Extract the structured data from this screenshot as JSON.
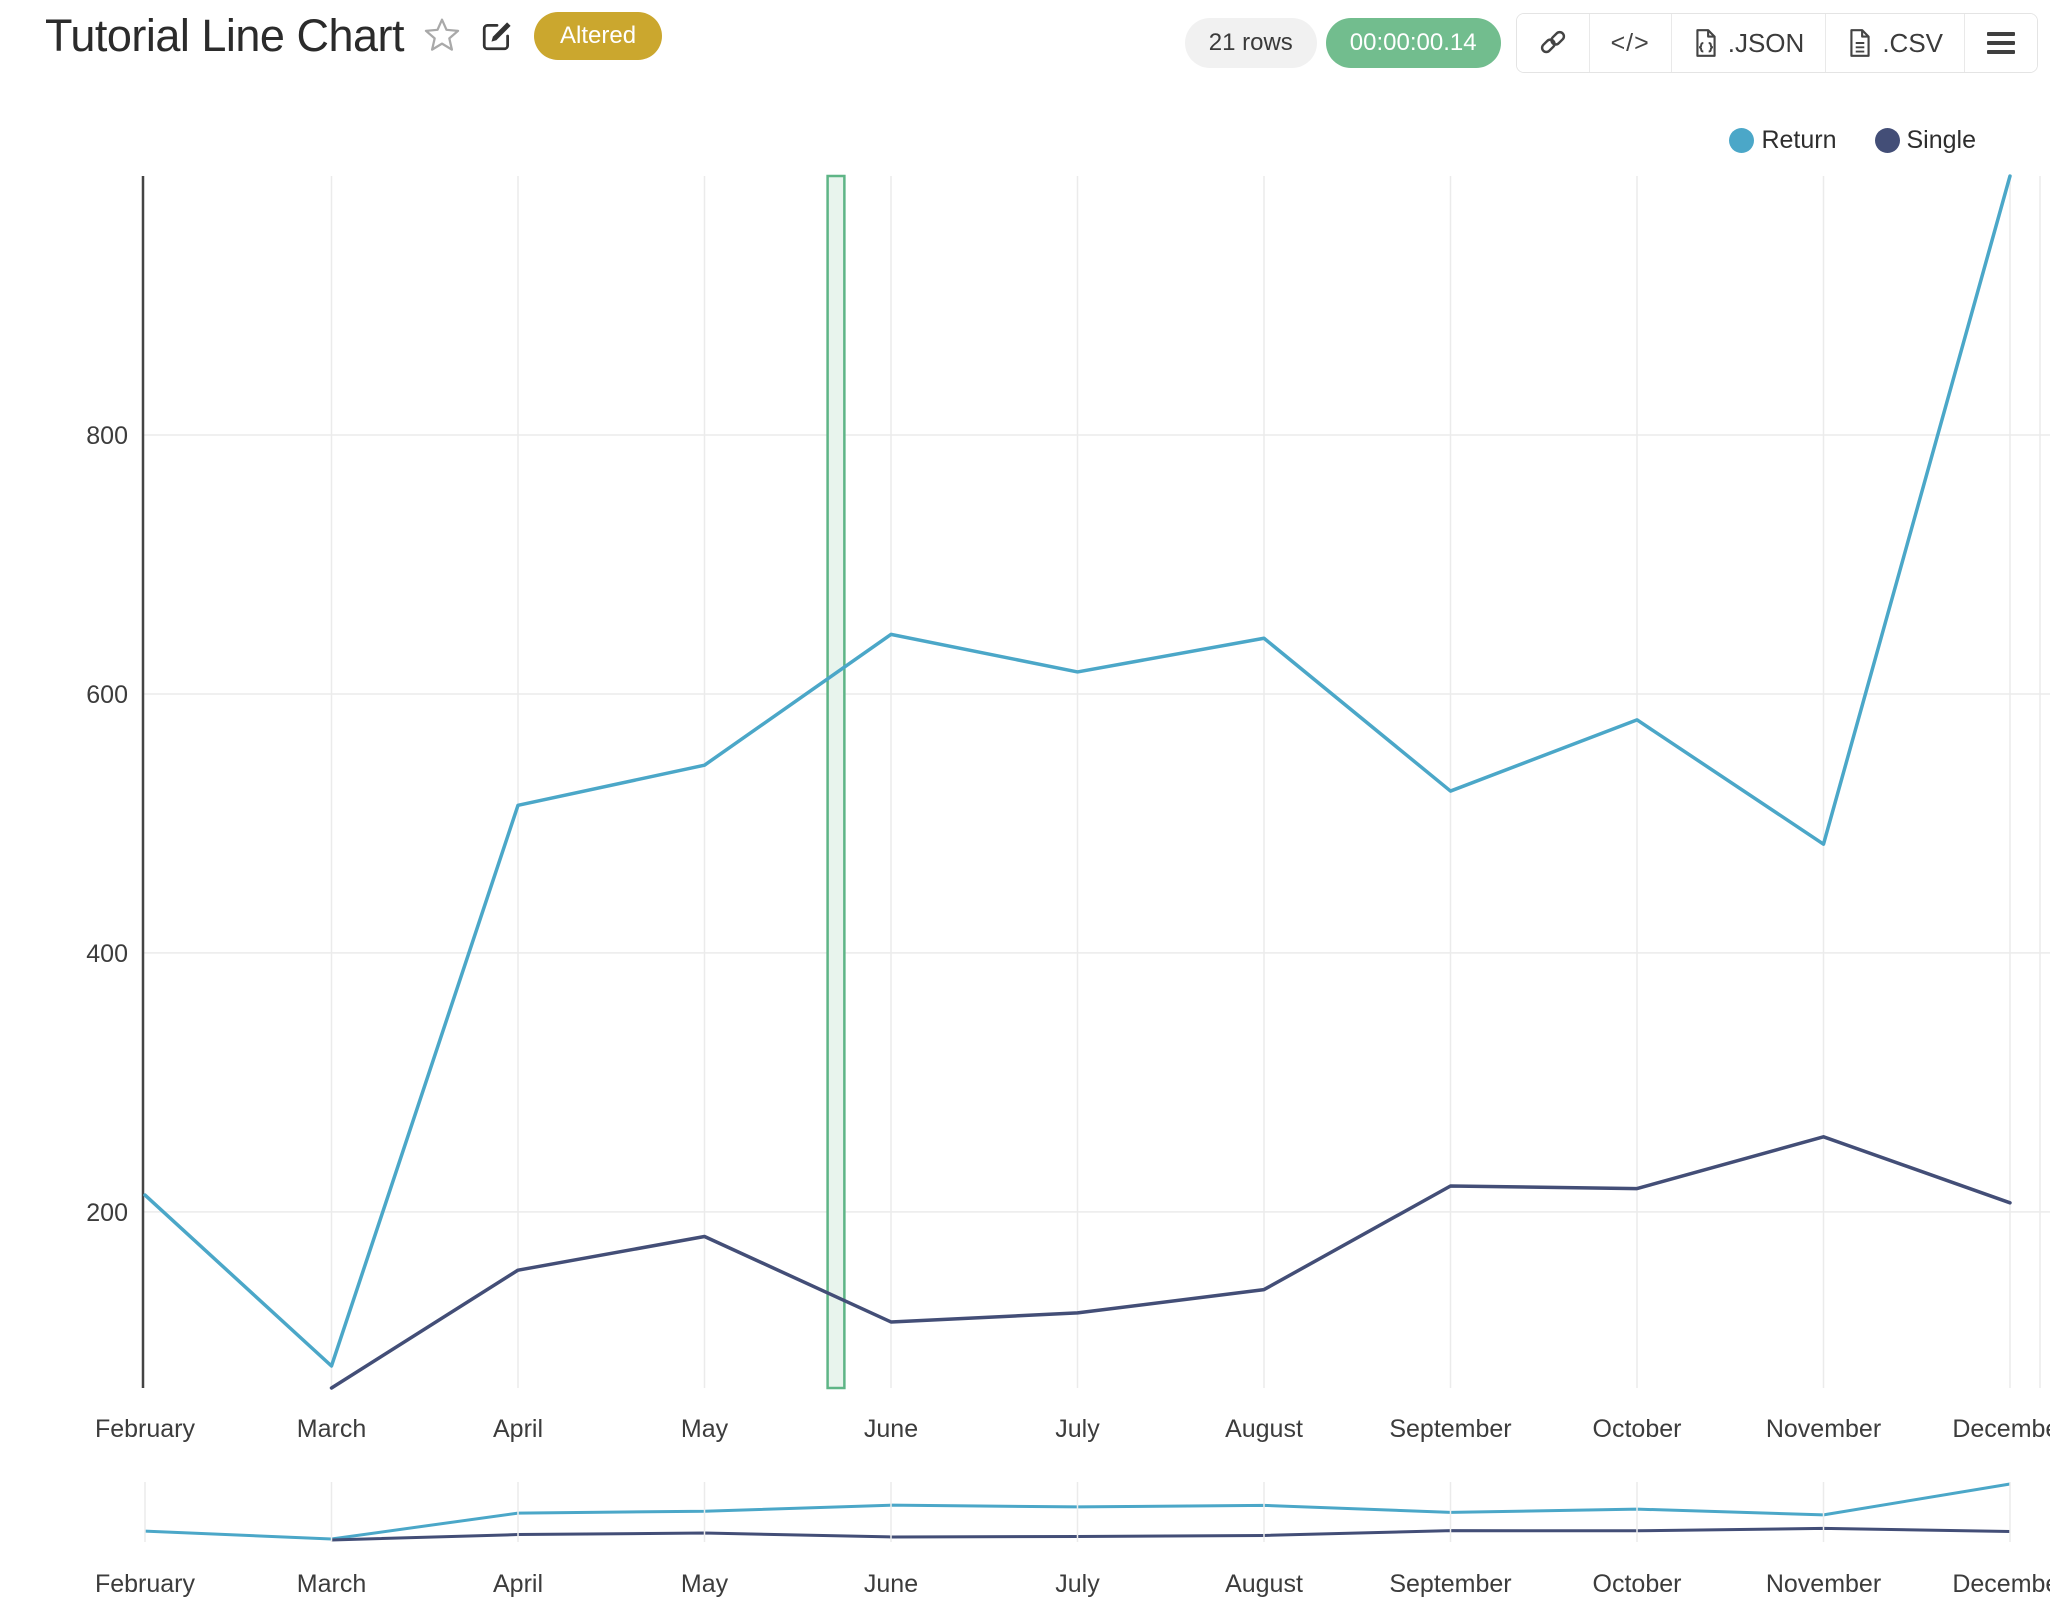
{
  "header": {
    "title": "Tutorial Line Chart",
    "altered_badge": "Altered",
    "rows_badge": "21 rows",
    "timer_badge": "00:00:00.14",
    "export_json_label": ".JSON",
    "export_csv_label": ".CSV"
  },
  "icons": {
    "code_glyph": "</>"
  },
  "colors": {
    "return_line": "#4BA7C8",
    "single_line": "#434E77",
    "altered_badge_bg": "#CBA72E",
    "timer_badge_bg": "#72BD8E",
    "rows_badge_bg": "#F1F1F1",
    "selection_fill": "#E8F4ED",
    "selection_border": "#5EB586",
    "axis_line": "#444444",
    "gridline": "#EBEBEB"
  },
  "chart_data": {
    "type": "line",
    "x": [
      "February",
      "March",
      "April",
      "May",
      "June",
      "July",
      "August",
      "September",
      "October",
      "November",
      "December"
    ],
    "series": [
      {
        "name": "Return",
        "color": "#4BA7C8",
        "values": [
          213,
          81,
          514,
          545,
          646,
          617,
          643,
          525,
          580,
          484,
          1000
        ]
      },
      {
        "name": "Single",
        "color": "#434E77",
        "values": [
          null,
          64,
          155,
          181,
          115,
          122,
          140,
          220,
          218,
          258,
          207
        ]
      }
    ],
    "title": "",
    "xlabel": "",
    "ylabel": "",
    "yticks": [
      200,
      400,
      600,
      800
    ],
    "ylim": [
      64,
      1000
    ],
    "grid": true,
    "legend_position": "top-right",
    "legend": [
      "Return",
      "Single"
    ],
    "selection_band": {
      "from_index": 3.66,
      "to_index": 3.75
    },
    "rangeslider": true
  }
}
